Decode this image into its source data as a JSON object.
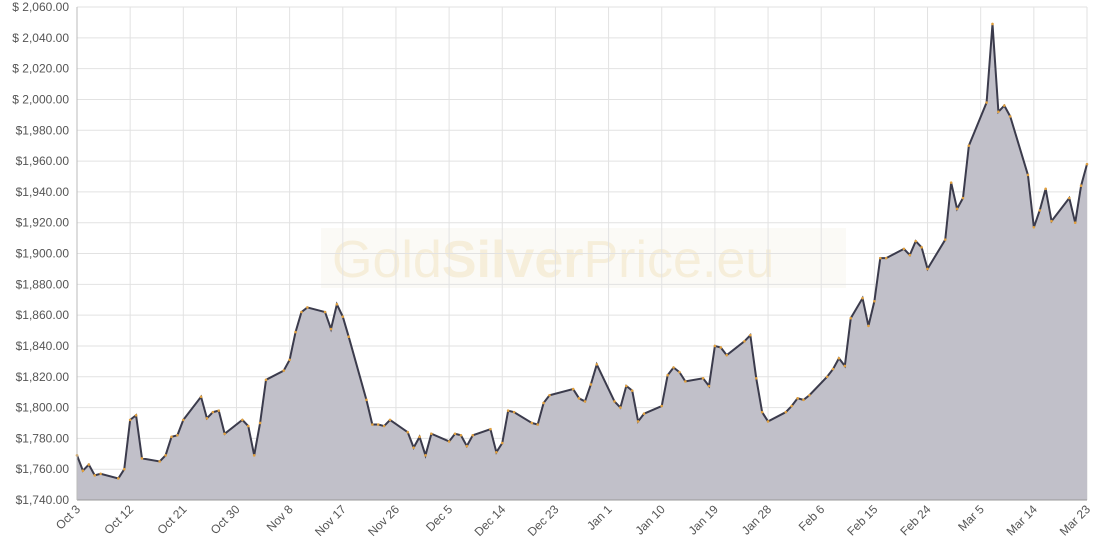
{
  "chart_data": {
    "type": "area",
    "watermark": [
      "Gold",
      "Silver",
      "Price.eu"
    ],
    "x": [
      0,
      1,
      2,
      3,
      4,
      7,
      8,
      9,
      10,
      11,
      14,
      15,
      16,
      17,
      18,
      21,
      22,
      23,
      24,
      25,
      28,
      29,
      30,
      31,
      32,
      35,
      36,
      37,
      38,
      39,
      42,
      43,
      44,
      45,
      46,
      49,
      50,
      51,
      52,
      53,
      56,
      57,
      58,
      59,
      60,
      63,
      64,
      65,
      66,
      67,
      70,
      71,
      72,
      73,
      74,
      77,
      78,
      79,
      80,
      84,
      85,
      86,
      87,
      88,
      91,
      92,
      93,
      94,
      95,
      96,
      99,
      100,
      101,
      102,
      103,
      106,
      107,
      108,
      109,
      110,
      113,
      114,
      115,
      116,
      117,
      120,
      121,
      122,
      123,
      124,
      127,
      128,
      129,
      130,
      131,
      133,
      134,
      135,
      136,
      137,
      140,
      141,
      142,
      143,
      144,
      147,
      148,
      149,
      150,
      151,
      154,
      155,
      156,
      157,
      158,
      161,
      162,
      163,
      164,
      165,
      168,
      169,
      170,
      171
    ],
    "series": [
      {
        "name": "Gold",
        "color": "#3b3b4c",
        "fill": "#c1c0c9",
        "point_color": "#e0a040",
        "values": [
          1769,
          1759,
          1763,
          1756,
          1757,
          1754,
          1760,
          1792,
          1795,
          1767,
          1765,
          1769,
          1781,
          1782,
          1792,
          1807,
          1793,
          1797,
          1798,
          1783,
          1792,
          1788,
          1769,
          1790,
          1818,
          1824,
          1831,
          1849,
          1862,
          1865,
          1862,
          1851,
          1867,
          1859,
          1846,
          1805,
          1789,
          1789,
          1788,
          1792,
          1784,
          1774,
          1781,
          1769,
          1783,
          1778,
          1783,
          1782,
          1775,
          1782,
          1786,
          1771,
          1777,
          1798,
          1797,
          1790,
          1789,
          1803,
          1808,
          1812,
          1806,
          1804,
          1815,
          1828,
          1804,
          1800,
          1814,
          1811,
          1791,
          1796,
          1801,
          1821,
          1826,
          1823,
          1817,
          1819,
          1814,
          1840,
          1839,
          1834,
          1843,
          1847,
          1819,
          1797,
          1791,
          1797,
          1801,
          1806,
          1805,
          1808,
          1820,
          1825,
          1832,
          1827,
          1858,
          1871,
          1853,
          1869,
          1897,
          1897,
          1903,
          1899,
          1908,
          1904,
          1890,
          1909,
          1946,
          1929,
          1936,
          1970,
          1998,
          2049,
          1992,
          1996,
          1989,
          1951,
          1917,
          1928,
          1942,
          1921,
          1936,
          1920,
          1944,
          1958
        ]
      }
    ],
    "xlim": [
      0,
      171
    ],
    "xticks": [
      {
        "value": 0,
        "label": "Oct 3"
      },
      {
        "value": 9,
        "label": "Oct 12"
      },
      {
        "value": 18,
        "label": "Oct 21"
      },
      {
        "value": 27,
        "label": "Oct 30"
      },
      {
        "value": 36,
        "label": "Nov 8"
      },
      {
        "value": 45,
        "label": "Nov 17"
      },
      {
        "value": 54,
        "label": "Nov 26"
      },
      {
        "value": 63,
        "label": "Dec 5"
      },
      {
        "value": 72,
        "label": "Dec 14"
      },
      {
        "value": 81,
        "label": "Dec 23"
      },
      {
        "value": 90,
        "label": "Jan 1"
      },
      {
        "value": 99,
        "label": "Jan 10"
      },
      {
        "value": 108,
        "label": "Jan 19"
      },
      {
        "value": 117,
        "label": "Jan 28"
      },
      {
        "value": 126,
        "label": "Feb 6"
      },
      {
        "value": 135,
        "label": "Feb 15"
      },
      {
        "value": 144,
        "label": "Feb 24"
      },
      {
        "value": 153,
        "label": "Mar 5"
      },
      {
        "value": 162,
        "label": "Mar 14"
      },
      {
        "value": 171,
        "label": "Mar 23"
      }
    ],
    "ylim": [
      1740,
      2060
    ],
    "yticks": [
      {
        "value": 1740,
        "label": "$1,740.00"
      },
      {
        "value": 1760,
        "label": "$1,760.00"
      },
      {
        "value": 1780,
        "label": "$1,780.00"
      },
      {
        "value": 1800,
        "label": "$1,800.00"
      },
      {
        "value": 1820,
        "label": "$1,820.00"
      },
      {
        "value": 1840,
        "label": "$1,840.00"
      },
      {
        "value": 1860,
        "label": "$1,860.00"
      },
      {
        "value": 1880,
        "label": "$1,880.00"
      },
      {
        "value": 1900,
        "label": "$1,900.00"
      },
      {
        "value": 1920,
        "label": "$1,920.00"
      },
      {
        "value": 1940,
        "label": "$1,940.00"
      },
      {
        "value": 1960,
        "label": "$1,960.00"
      },
      {
        "value": 1980,
        "label": "$1,980.00"
      },
      {
        "value": 2000,
        "label": "$ 2,000.00"
      },
      {
        "value": 2020,
        "label": "$ 2,020.00"
      },
      {
        "value": 2040,
        "label": "$ 2,040.00"
      },
      {
        "value": 2060,
        "label": "$ 2,060.00"
      }
    ],
    "grid": true
  }
}
